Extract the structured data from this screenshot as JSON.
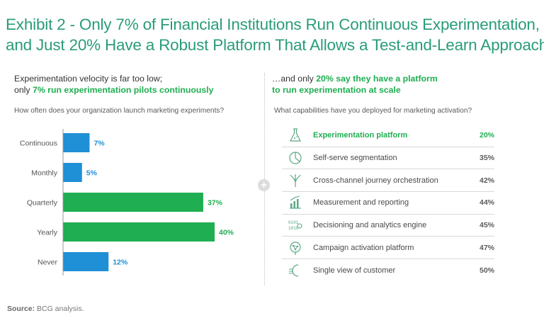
{
  "title": {
    "line1": "Exhibit 2 - Only 7% of Financial Institutions Run Continuous Experimentation,",
    "line2": "and Just 20% Have a Robust Platform That Allows a Test-and-Learn Approach"
  },
  "left": {
    "heading_line1": "Experimentation velocity is far too low;",
    "heading_line2_plain": "only ",
    "heading_line2_highlight": "7% run experimentation pilots continuously",
    "question": "How often does your organization launch marketing experiments?"
  },
  "right": {
    "heading_line1_plain": "…and only ",
    "heading_line1_highlight": "20% say they have a platform",
    "heading_line2_highlight": "to run experimentation at scale",
    "question": "What capabilities have you deployed for marketing activation?"
  },
  "colors": {
    "blue": "#1f8fd6",
    "green": "#1fae51",
    "title": "#2a9c7a"
  },
  "chart_data": [
    {
      "type": "bar",
      "orientation": "horizontal",
      "categories": [
        "Continuous",
        "Monthly",
        "Quarterly",
        "Yearly",
        "Never"
      ],
      "values": [
        7,
        5,
        37,
        40,
        12
      ],
      "value_labels": [
        "7%",
        "5%",
        "37%",
        "40%",
        "12%"
      ],
      "bar_colors": [
        "#1f8fd6",
        "#1f8fd6",
        "#1fae51",
        "#1fae51",
        "#1f8fd6"
      ],
      "label_colors": [
        "#1f8fd6",
        "#1f8fd6",
        "#1fae51",
        "#1fae51",
        "#1f8fd6"
      ],
      "xlim": [
        0,
        40
      ],
      "grid": false
    },
    {
      "type": "table",
      "rows": [
        {
          "label": "Experimentation platform",
          "value": "20%",
          "icon": "flask-icon",
          "highlight": true
        },
        {
          "label": "Self-serve segmentation",
          "value": "35%",
          "icon": "segments-icon",
          "highlight": false
        },
        {
          "label": "Cross-channel journey orchestration",
          "value": "42%",
          "icon": "branch-icon",
          "highlight": false
        },
        {
          "label": "Measurement and reporting",
          "value": "44%",
          "icon": "growth-chart-icon",
          "highlight": false
        },
        {
          "label": "Decisioning and analytics engine",
          "value": "45%",
          "icon": "binary-data-icon",
          "highlight": false
        },
        {
          "label": "Campaign activation platform",
          "value": "47%",
          "icon": "network-head-icon",
          "highlight": false
        },
        {
          "label": "Single view of customer",
          "value": "50%",
          "icon": "customer-face-icon",
          "highlight": false
        }
      ]
    }
  ],
  "source": {
    "label": "Source:",
    "text": "BCG analysis."
  }
}
